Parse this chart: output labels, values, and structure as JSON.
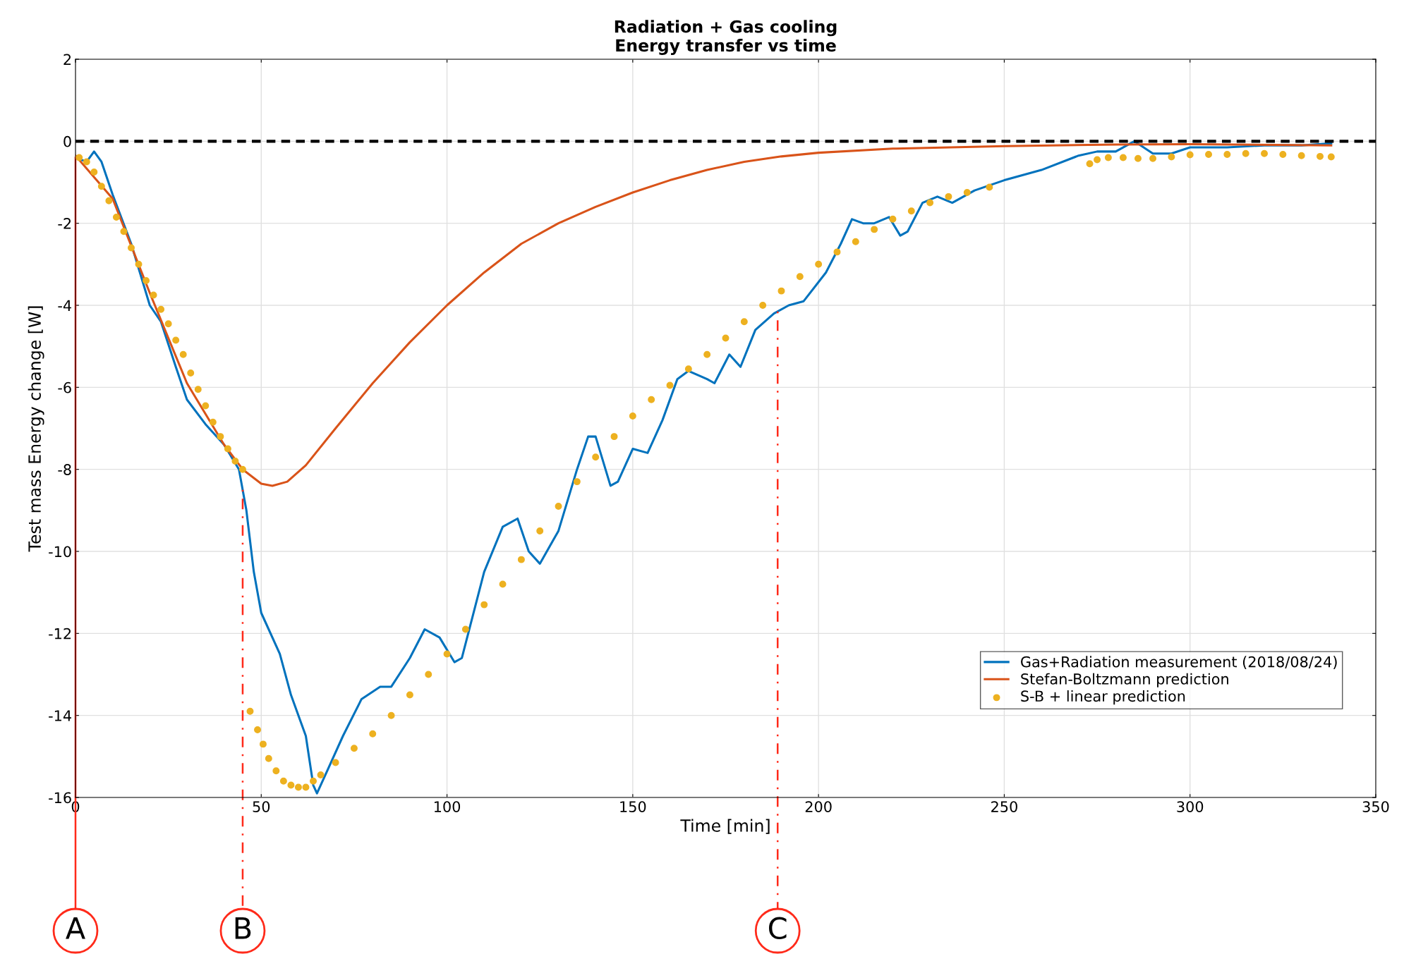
{
  "chart_data": {
    "type": "line",
    "title": "Radiation + Gas cooling\nEnergy transfer vs time",
    "xlabel": "Time [min]",
    "ylabel": "Test mass Energy change [W]",
    "xlim": [
      0,
      350
    ],
    "xticks": [
      0,
      50,
      100,
      150,
      200,
      250,
      300,
      350
    ],
    "ylim": [
      -16,
      2
    ],
    "yticks": [
      -16,
      -14,
      -12,
      -10,
      -8,
      -6,
      -4,
      -2,
      0,
      2
    ],
    "grid": true,
    "legend": "bottom right",
    "series": [
      {
        "name": "Gas+Radiation measurement (2018/08/24)",
        "color": "#0072bd",
        "marker": "none",
        "x": [
          0,
          3,
          5,
          7,
          10,
          15,
          20,
          23,
          27,
          30,
          35,
          40,
          44,
          46,
          48,
          50,
          55,
          58,
          62,
          64,
          65,
          68,
          72,
          77,
          82,
          85,
          90,
          94,
          98,
          102,
          104,
          110,
          115,
          119,
          122,
          125,
          130,
          135,
          138,
          140,
          144,
          146,
          150,
          154,
          158,
          162,
          165,
          170,
          172,
          176,
          179,
          183,
          188,
          192,
          196,
          202,
          206,
          209,
          212,
          215,
          219,
          222,
          224,
          228,
          232,
          236,
          242,
          250,
          260,
          270,
          275,
          280,
          285,
          290,
          295,
          300,
          310,
          320,
          330,
          338
        ],
        "values": [
          -0.4,
          -0.5,
          -0.25,
          -0.5,
          -1.3,
          -2.5,
          -4.0,
          -4.4,
          -5.5,
          -6.3,
          -6.9,
          -7.4,
          -8.0,
          -9.0,
          -10.5,
          -11.5,
          -12.5,
          -13.5,
          -14.5,
          -15.7,
          -15.9,
          -15.3,
          -14.5,
          -13.6,
          -13.3,
          -13.3,
          -12.6,
          -11.9,
          -12.1,
          -12.7,
          -12.6,
          -10.5,
          -9.4,
          -9.2,
          -10.0,
          -10.3,
          -9.5,
          -8.0,
          -7.2,
          -7.2,
          -8.4,
          -8.3,
          -7.5,
          -7.6,
          -6.8,
          -5.8,
          -5.6,
          -5.8,
          -5.9,
          -5.2,
          -5.5,
          -4.6,
          -4.2,
          -4.0,
          -3.9,
          -3.2,
          -2.5,
          -1.9,
          -2.0,
          -2.0,
          -1.85,
          -2.3,
          -2.2,
          -1.5,
          -1.35,
          -1.5,
          -1.2,
          -0.95,
          -0.7,
          -0.35,
          -0.25,
          -0.25,
          0.0,
          -0.3,
          -0.3,
          -0.15,
          -0.15,
          -0.1,
          -0.1,
          -0.05
        ]
      },
      {
        "name": "Stefan-Boltzmann prediction",
        "color": "#d95319",
        "marker": "none",
        "x": [
          0,
          10,
          20,
          30,
          40,
          45,
          50,
          53,
          57,
          62,
          70,
          80,
          90,
          100,
          110,
          120,
          130,
          140,
          150,
          160,
          170,
          180,
          190,
          200,
          220,
          250,
          280,
          300,
          338
        ],
        "values": [
          -0.35,
          -1.4,
          -3.7,
          -5.9,
          -7.4,
          -8.0,
          -8.35,
          -8.4,
          -8.3,
          -7.9,
          -7.0,
          -5.9,
          -4.9,
          -4.0,
          -3.2,
          -2.5,
          -2.0,
          -1.6,
          -1.25,
          -0.95,
          -0.7,
          -0.5,
          -0.37,
          -0.28,
          -0.18,
          -0.12,
          -0.08,
          -0.07,
          -0.1
        ]
      },
      {
        "name": "S-B + linear prediction",
        "color": "#edb120",
        "type": "scatter",
        "marker": "circle",
        "x": [
          1,
          3,
          5,
          7,
          9,
          11,
          13,
          15,
          17,
          19,
          21,
          23,
          25,
          27,
          29,
          31,
          33,
          35,
          37,
          39,
          41,
          43,
          45,
          47,
          49,
          50.5,
          52,
          54,
          56,
          58,
          60,
          62,
          64,
          66,
          70,
          75,
          80,
          85,
          90,
          95,
          100,
          105,
          110,
          115,
          120,
          125,
          130,
          135,
          140,
          145,
          150,
          155,
          160,
          165,
          170,
          175,
          180,
          185,
          190,
          195,
          200,
          205,
          210,
          215,
          220,
          225,
          230,
          235,
          240,
          246,
          273,
          275,
          278,
          282,
          286,
          290,
          295,
          300,
          305,
          310,
          315,
          320,
          325,
          330,
          335,
          338
        ],
        "values": [
          -0.4,
          -0.5,
          -0.75,
          -1.1,
          -1.45,
          -1.85,
          -2.2,
          -2.6,
          -3.0,
          -3.4,
          -3.75,
          -4.1,
          -4.45,
          -4.85,
          -5.2,
          -5.65,
          -6.05,
          -6.45,
          -6.85,
          -7.2,
          -7.5,
          -7.8,
          -8.0,
          -13.9,
          -14.35,
          -14.7,
          -15.05,
          -15.35,
          -15.6,
          -15.7,
          -15.75,
          -15.75,
          -15.6,
          -15.45,
          -15.15,
          -14.8,
          -14.45,
          -14.0,
          -13.5,
          -13.0,
          -12.5,
          -11.9,
          -11.3,
          -10.8,
          -10.2,
          -9.5,
          -8.9,
          -8.3,
          -7.7,
          -7.2,
          -6.7,
          -6.3,
          -5.95,
          -5.55,
          -5.2,
          -4.8,
          -4.4,
          -4.0,
          -3.65,
          -3.3,
          -3.0,
          -2.7,
          -2.45,
          -2.15,
          -1.9,
          -1.7,
          -1.5,
          -1.35,
          -1.25,
          -1.12,
          -0.55,
          -0.45,
          -0.4,
          -0.4,
          -0.42,
          -0.42,
          -0.38,
          -0.33,
          -0.32,
          -0.32,
          -0.3,
          -0.3,
          -0.32,
          -0.35,
          -0.37,
          -0.38
        ]
      }
    ],
    "ref_lines": [
      {
        "axis": "y",
        "value": 0,
        "color": "#000000",
        "line_style": "dashed"
      },
      {
        "axis": "x",
        "value": 0,
        "label": "A",
        "color": "#ff2a1a",
        "line_style": "solid"
      },
      {
        "axis": "x",
        "value": 45,
        "label": "B",
        "color": "#ff2a1a",
        "line_style": "dotted"
      },
      {
        "axis": "x",
        "value": 189,
        "label": "C",
        "color": "#ff2a1a",
        "line_style": "dotted"
      }
    ]
  }
}
